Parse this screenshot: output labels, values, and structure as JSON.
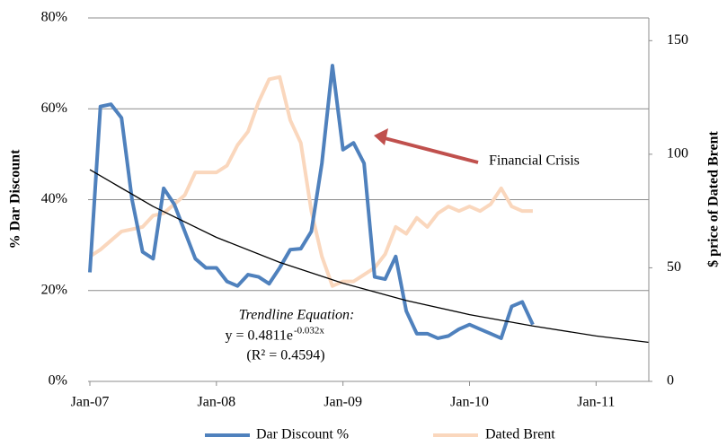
{
  "chart_data": {
    "type": "line",
    "y_label": "% Dar Discount",
    "y2_label": "$ price of Dated Brent",
    "x": [
      0,
      1,
      2,
      3,
      4,
      5,
      6,
      7,
      8,
      9,
      10,
      11,
      12,
      13,
      14,
      15,
      16,
      17,
      18,
      19,
      20,
      21,
      22,
      23,
      24,
      25,
      26,
      27,
      28,
      29,
      30,
      31,
      32,
      33,
      34,
      35,
      36,
      37,
      38,
      39,
      40,
      41,
      42
    ],
    "series": [
      {
        "name": "Dar Discount %",
        "color": "#4f81bd",
        "axis": "y",
        "values": [
          24,
          60.5,
          61,
          58,
          40,
          28.5,
          27,
          42.5,
          39,
          33,
          27,
          25,
          25,
          22,
          21,
          23.5,
          23,
          21.5,
          25,
          29,
          29.2,
          33,
          48,
          69.5,
          51,
          52.5,
          48,
          23,
          22.5,
          27.5,
          15.5,
          10.5,
          10.5,
          9.5,
          10,
          11.5,
          12.5,
          11.5,
          10.5,
          9.5,
          16.5,
          17.5,
          12.5
        ]
      },
      {
        "name": "Dated Brent",
        "color": "#fad7bd",
        "axis": "y2",
        "values": [
          55,
          58,
          62,
          66,
          67,
          68,
          73,
          74,
          78,
          82,
          92,
          92,
          92,
          95,
          104,
          110,
          123,
          133,
          134,
          115,
          105,
          75,
          55,
          42,
          44,
          44,
          47,
          50,
          56,
          68,
          65,
          72,
          68,
          74,
          77,
          75,
          77,
          75,
          78,
          85,
          77,
          75,
          75
        ]
      }
    ],
    "trendline": {
      "color": "#000000",
      "x": [
        0,
        6,
        12,
        18,
        24,
        30,
        36,
        42,
        48,
        53
      ],
      "values": [
        46.6,
        38.5,
        31.7,
        26.2,
        21.6,
        17.8,
        14.7,
        12.2,
        10.0,
        8.6
      ]
    },
    "annotations": {
      "arrow_label": "Financial Crisis",
      "trend_title": "Trendline Equation:",
      "trend_eq": "y = 0.4811e",
      "trend_exp": "-0.032x",
      "trend_r2": "(R² = 0.4594)"
    },
    "xlim": [
      0,
      53
    ],
    "xticks": [
      {
        "value": 0,
        "label": "Jan-07"
      },
      {
        "value": 12,
        "label": "Jan-08"
      },
      {
        "value": 24,
        "label": "Jan-09"
      },
      {
        "value": 36,
        "label": "Jan-10"
      },
      {
        "value": 48,
        "label": "Jan-11"
      }
    ],
    "ylim": [
      0,
      80
    ],
    "yticks": [
      {
        "value": 0,
        "label": "0%"
      },
      {
        "value": 20,
        "label": "20%"
      },
      {
        "value": 40,
        "label": "40%"
      },
      {
        "value": 60,
        "label": "60%"
      },
      {
        "value": 80,
        "label": "80%"
      }
    ],
    "y2lim": [
      0,
      160
    ],
    "y2ticks": [
      0,
      50,
      100,
      150
    ],
    "grid": true,
    "legend": "bottom"
  }
}
